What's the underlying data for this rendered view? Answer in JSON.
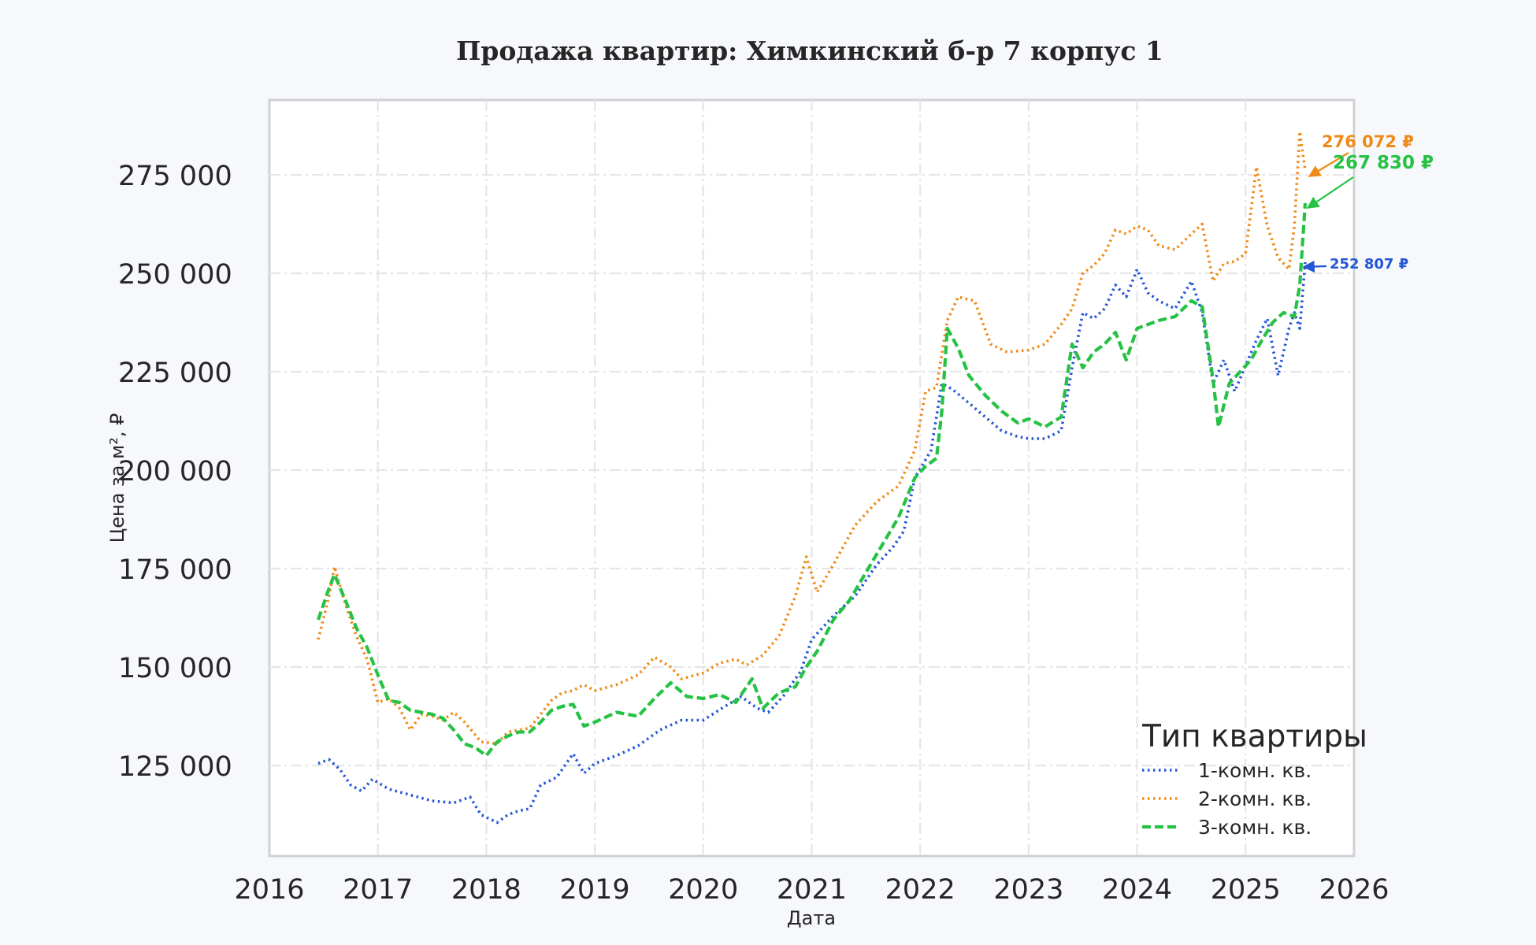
{
  "chart_data": {
    "type": "line",
    "title": "Продажа квартир: Химкинский б-р 7 корпус 1",
    "xlabel": "Дата",
    "ylabel": "Цена за м², ₽",
    "xlim": [
      2016.0,
      2026.0
    ],
    "ylim": [
      102000,
      294000
    ],
    "x_ticks": [
      2016,
      2017,
      2018,
      2019,
      2020,
      2021,
      2022,
      2023,
      2024,
      2025,
      2026
    ],
    "x_tick_labels": [
      "2016",
      "2017",
      "2018",
      "2019",
      "2020",
      "2021",
      "2022",
      "2023",
      "2024",
      "2025",
      "2026"
    ],
    "y_ticks": [
      125000,
      150000,
      175000,
      200000,
      225000,
      250000,
      275000
    ],
    "y_tick_labels": [
      "125 000",
      "150 000",
      "175 000",
      "200 000",
      "225 000",
      "250 000",
      "275 000"
    ],
    "grid": true,
    "legend": {
      "title": "Тип квартиры",
      "placement": "bottom-right"
    },
    "series": [
      {
        "name": "1-комн. кв.",
        "color": "#2457d6",
        "style": "dotted",
        "x": [
          2016.45,
          2016.55,
          2016.65,
          2016.75,
          2016.85,
          2016.95,
          2017.1,
          2017.3,
          2017.5,
          2017.7,
          2017.85,
          2017.95,
          2018.1,
          2018.2,
          2018.3,
          2018.4,
          2018.5,
          2018.65,
          2018.8,
          2018.9,
          2019.0,
          2019.2,
          2019.4,
          2019.6,
          2019.8,
          2020.0,
          2020.2,
          2020.35,
          2020.5,
          2020.6,
          2020.75,
          2020.9,
          2021.0,
          2021.2,
          2021.4,
          2021.6,
          2021.75,
          2021.85,
          2021.95,
          2022.1,
          2022.2,
          2022.3,
          2022.45,
          2022.6,
          2022.75,
          2022.9,
          2023.0,
          2023.15,
          2023.3,
          2023.4,
          2023.5,
          2023.6,
          2023.7,
          2023.8,
          2023.9,
          2024.0,
          2024.1,
          2024.2,
          2024.35,
          2024.5,
          2024.6,
          2024.7,
          2024.8,
          2024.9,
          2025.0,
          2025.1,
          2025.2,
          2025.3,
          2025.4,
          2025.45,
          2025.5,
          2025.55
        ],
        "values": [
          125500,
          126500,
          124000,
          120000,
          118500,
          121500,
          119000,
          117500,
          116000,
          115500,
          117000,
          112500,
          110500,
          112500,
          113500,
          114000,
          120000,
          122000,
          128000,
          123000,
          125500,
          127500,
          130000,
          134000,
          136500,
          136500,
          140000,
          142500,
          139500,
          138500,
          143000,
          149000,
          157000,
          163000,
          168000,
          176000,
          180500,
          184500,
          198000,
          205000,
          222000,
          220500,
          217000,
          213500,
          210000,
          208500,
          208000,
          208000,
          210000,
          226000,
          240000,
          238500,
          241000,
          247000,
          244000,
          251000,
          245000,
          243000,
          241000,
          248000,
          240000,
          222000,
          228000,
          220000,
          226500,
          233000,
          238500,
          224000,
          236000,
          240000,
          236000,
          252807
        ]
      },
      {
        "name": "2-комн. кв.",
        "color": "#ef8a17",
        "style": "dotted",
        "x": [
          2016.45,
          2016.55,
          2016.6,
          2016.7,
          2016.8,
          2016.9,
          2017.0,
          2017.1,
          2017.2,
          2017.3,
          2017.4,
          2017.5,
          2017.6,
          2017.7,
          2017.8,
          2017.95,
          2018.1,
          2018.2,
          2018.3,
          2018.4,
          2018.5,
          2018.6,
          2018.7,
          2018.8,
          2018.9,
          2019.0,
          2019.2,
          2019.4,
          2019.55,
          2019.7,
          2019.8,
          2020.0,
          2020.15,
          2020.3,
          2020.4,
          2020.55,
          2020.7,
          2020.85,
          2020.95,
          2021.05,
          2021.2,
          2021.4,
          2021.6,
          2021.8,
          2021.95,
          2022.05,
          2022.15,
          2022.25,
          2022.35,
          2022.5,
          2022.65,
          2022.8,
          2023.0,
          2023.15,
          2023.3,
          2023.4,
          2023.5,
          2023.6,
          2023.7,
          2023.8,
          2023.9,
          2024.0,
          2024.1,
          2024.2,
          2024.35,
          2024.5,
          2024.6,
          2024.7,
          2024.8,
          2024.9,
          2025.0,
          2025.1,
          2025.2,
          2025.3,
          2025.4,
          2025.45,
          2025.5,
          2025.55
        ],
        "values": [
          157000,
          168000,
          175500,
          166000,
          158000,
          152000,
          141000,
          142000,
          139500,
          134000,
          138000,
          137500,
          136500,
          138500,
          136000,
          131000,
          130500,
          133500,
          134000,
          134500,
          138000,
          141500,
          143500,
          144000,
          145500,
          144000,
          145500,
          148000,
          152500,
          150000,
          147000,
          148500,
          151000,
          152000,
          150500,
          153000,
          158000,
          168000,
          178000,
          169000,
          176000,
          186000,
          192000,
          196000,
          205000,
          220000,
          221000,
          238000,
          244000,
          243000,
          232000,
          230000,
          230500,
          232000,
          237000,
          241000,
          250000,
          252000,
          255000,
          261000,
          260000,
          262000,
          261000,
          257000,
          256000,
          260000,
          262500,
          248000,
          252500,
          253000,
          255000,
          277000,
          262000,
          254000,
          251000,
          262000,
          286000,
          276072
        ]
      },
      {
        "name": "3-комн. кв.",
        "color": "#25c244",
        "style": "dashed",
        "x": [
          2016.45,
          2016.5,
          2016.55,
          2016.6,
          2016.7,
          2016.8,
          2016.9,
          2017.0,
          2017.1,
          2017.2,
          2017.3,
          2017.4,
          2017.5,
          2017.6,
          2017.7,
          2017.8,
          2017.9,
          2018.0,
          2018.1,
          2018.2,
          2018.3,
          2018.4,
          2018.5,
          2018.6,
          2018.7,
          2018.8,
          2018.9,
          2019.0,
          2019.2,
          2019.4,
          2019.55,
          2019.7,
          2019.85,
          2020.0,
          2020.15,
          2020.3,
          2020.45,
          2020.55,
          2020.7,
          2020.85,
          2020.95,
          2021.05,
          2021.2,
          2021.35,
          2021.5,
          2021.65,
          2021.8,
          2021.95,
          2022.05,
          2022.15,
          2022.2,
          2022.25,
          2022.35,
          2022.45,
          2022.6,
          2022.75,
          2022.9,
          2023.0,
          2023.15,
          2023.3,
          2023.4,
          2023.5,
          2023.6,
          2023.7,
          2023.8,
          2023.9,
          2024.0,
          2024.1,
          2024.2,
          2024.35,
          2024.5,
          2024.6,
          2024.7,
          2024.75,
          2024.85,
          2024.95,
          2025.05,
          2025.15,
          2025.25,
          2025.35,
          2025.45,
          2025.5,
          2025.55
        ],
        "values": [
          162000,
          166000,
          170000,
          173500,
          167000,
          160000,
          155000,
          148000,
          141500,
          141000,
          139000,
          138500,
          138000,
          137000,
          134000,
          130500,
          129500,
          127500,
          131000,
          132500,
          133500,
          133500,
          136000,
          139000,
          140000,
          140500,
          135000,
          136000,
          138500,
          137500,
          142000,
          146000,
          142500,
          142000,
          143000,
          141000,
          147000,
          139500,
          143500,
          145000,
          150000,
          154000,
          162000,
          167000,
          174000,
          181000,
          188000,
          198000,
          201000,
          203000,
          215000,
          236000,
          231000,
          224000,
          219000,
          215000,
          212000,
          213000,
          211000,
          213500,
          232000,
          226000,
          230000,
          232000,
          235000,
          228000,
          236000,
          237000,
          238000,
          239000,
          243000,
          241500,
          223000,
          211000,
          222000,
          225000,
          228000,
          233000,
          237500,
          240000,
          239000,
          247000,
          267830
        ]
      }
    ],
    "annotations": [
      {
        "series": "2-комн. кв.",
        "text": "276 072 ₽",
        "x": 2025.55,
        "y": 276072
      },
      {
        "series": "3-комн. кв.",
        "text": "267 830 ₽",
        "x": 2025.55,
        "y": 267830
      },
      {
        "series": "1-комн. кв.",
        "text": "252 807 ₽",
        "x": 2025.55,
        "y": 252807
      }
    ]
  }
}
